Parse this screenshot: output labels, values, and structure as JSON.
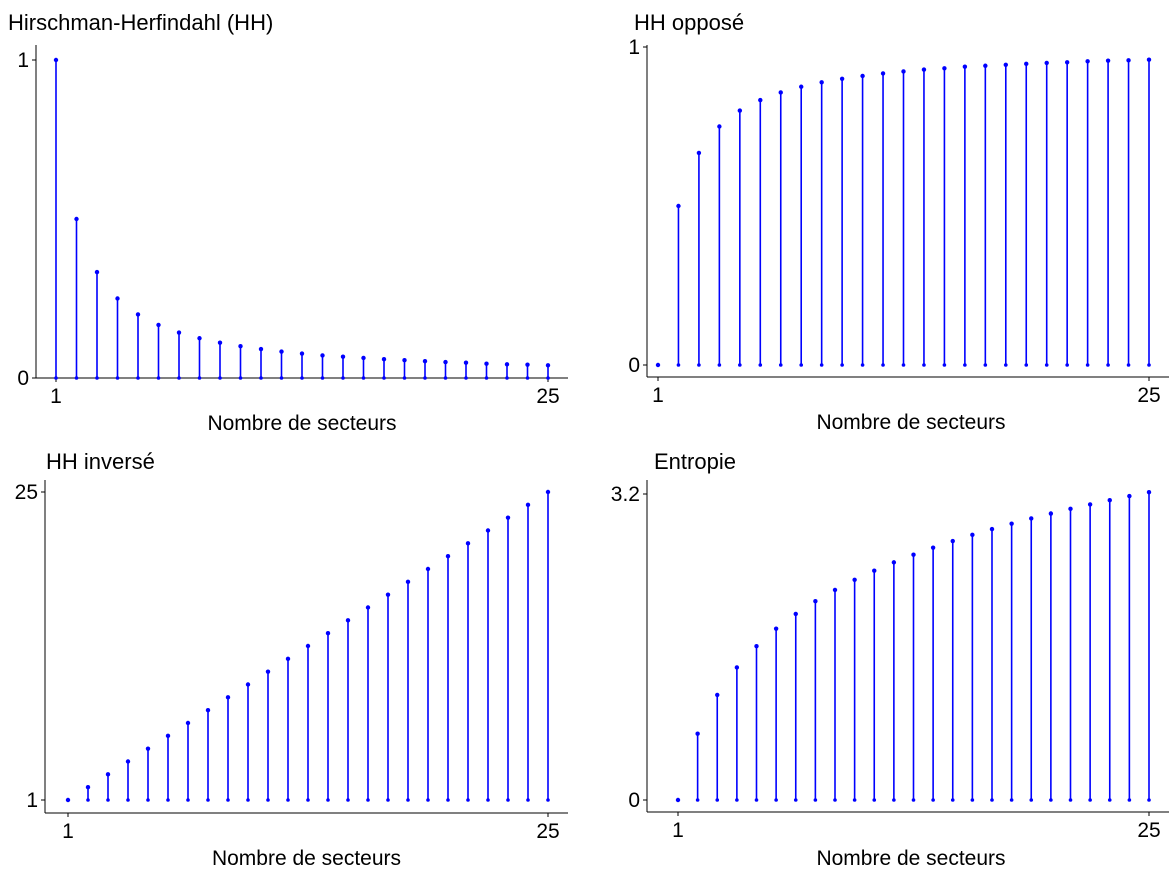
{
  "chart_data": [
    {
      "type": "lollipop",
      "title": "Hirschman-Herfindahl (HH)",
      "xlabel": "Nombre de secteurs",
      "ylabel": "",
      "xlim": [
        1,
        25
      ],
      "ylim": [
        0,
        1
      ],
      "x_tick_labels": [
        "1",
        "25"
      ],
      "y_tick_labels": [
        "0",
        "1"
      ],
      "baseline": 0,
      "color": "#0000ff",
      "grid": false,
      "x": [
        1,
        2,
        3,
        4,
        5,
        6,
        7,
        8,
        9,
        10,
        11,
        12,
        13,
        14,
        15,
        16,
        17,
        18,
        19,
        20,
        21,
        22,
        23,
        24,
        25
      ],
      "y": [
        1,
        0.5,
        0.333,
        0.25,
        0.2,
        0.167,
        0.143,
        0.125,
        0.111,
        0.1,
        0.091,
        0.083,
        0.077,
        0.071,
        0.067,
        0.063,
        0.059,
        0.056,
        0.053,
        0.05,
        0.048,
        0.045,
        0.043,
        0.042,
        0.04
      ]
    },
    {
      "type": "lollipop",
      "title": "HH opposé",
      "xlabel": "Nombre de secteurs",
      "ylabel": "",
      "xlim": [
        1,
        25
      ],
      "ylim": [
        0,
        1
      ],
      "x_tick_labels": [
        "1",
        "25"
      ],
      "y_tick_labels": [
        "0",
        "1"
      ],
      "baseline": 0,
      "color": "#0000ff",
      "grid": false,
      "x": [
        1,
        2,
        3,
        4,
        5,
        6,
        7,
        8,
        9,
        10,
        11,
        12,
        13,
        14,
        15,
        16,
        17,
        18,
        19,
        20,
        21,
        22,
        23,
        24,
        25
      ],
      "y": [
        0,
        0.5,
        0.667,
        0.75,
        0.8,
        0.833,
        0.857,
        0.875,
        0.889,
        0.9,
        0.909,
        0.917,
        0.923,
        0.929,
        0.933,
        0.938,
        0.941,
        0.944,
        0.947,
        0.95,
        0.952,
        0.955,
        0.957,
        0.958,
        0.96
      ]
    },
    {
      "type": "lollipop",
      "title": "HH inversé",
      "xlabel": "Nombre de secteurs",
      "ylabel": "",
      "xlim": [
        1,
        25
      ],
      "ylim": [
        1,
        25
      ],
      "x_tick_labels": [
        "1",
        "25"
      ],
      "y_tick_labels": [
        "1",
        "25"
      ],
      "baseline": 1,
      "color": "#0000ff",
      "grid": false,
      "x": [
        1,
        2,
        3,
        4,
        5,
        6,
        7,
        8,
        9,
        10,
        11,
        12,
        13,
        14,
        15,
        16,
        17,
        18,
        19,
        20,
        21,
        22,
        23,
        24,
        25
      ],
      "y": [
        1,
        2,
        3,
        4,
        5,
        6,
        7,
        8,
        9,
        10,
        11,
        12,
        13,
        14,
        15,
        16,
        17,
        18,
        19,
        20,
        21,
        22,
        23,
        24,
        25
      ]
    },
    {
      "type": "lollipop",
      "title": "Entropie",
      "xlabel": "Nombre de secteurs",
      "ylabel": "",
      "xlim": [
        1,
        25
      ],
      "ylim": [
        0,
        3.2
      ],
      "x_tick_labels": [
        "1",
        "25"
      ],
      "y_tick_labels": [
        "0",
        "3.2"
      ],
      "baseline": 0,
      "color": "#0000ff",
      "grid": false,
      "x": [
        1,
        2,
        3,
        4,
        5,
        6,
        7,
        8,
        9,
        10,
        11,
        12,
        13,
        14,
        15,
        16,
        17,
        18,
        19,
        20,
        21,
        22,
        23,
        24,
        25
      ],
      "y": [
        0,
        0.693,
        1.099,
        1.386,
        1.609,
        1.792,
        1.946,
        2.079,
        2.197,
        2.303,
        2.398,
        2.485,
        2.565,
        2.639,
        2.708,
        2.773,
        2.833,
        2.89,
        2.944,
        2.996,
        3.045,
        3.091,
        3.135,
        3.178,
        3.219
      ]
    }
  ]
}
